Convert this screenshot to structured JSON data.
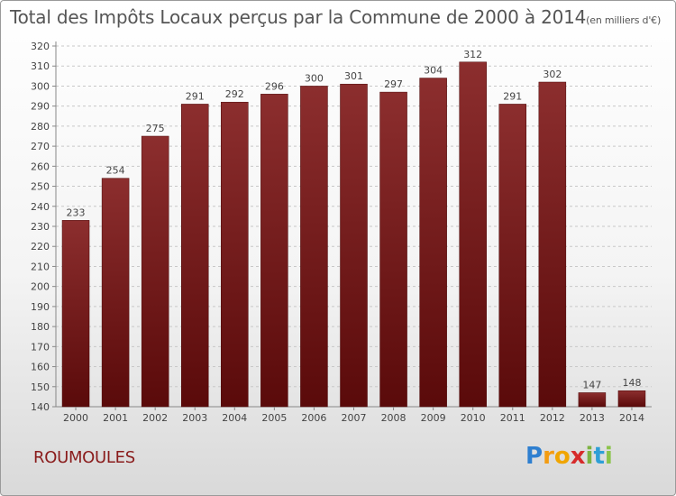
{
  "title": "Total des Impôts Locaux perçus par la Commune de 2000 à 2014",
  "subtitle": "(en milliers d'€)",
  "commune": "ROUMOULES",
  "logo": {
    "letters": [
      "P",
      "r",
      "o",
      "x",
      "i",
      "t",
      "i"
    ],
    "colors": [
      "#2e7fd0",
      "#f39c12",
      "#f0a500",
      "#d62b2b",
      "#7cb342",
      "#2e9fd6",
      "#8bc34a"
    ]
  },
  "chart_data": {
    "type": "bar",
    "title": "Total des Impôts Locaux perçus par la Commune de 2000 à 2014",
    "xlabel": "",
    "ylabel": "",
    "categories": [
      "2000",
      "2001",
      "2002",
      "2003",
      "2004",
      "2005",
      "2006",
      "2007",
      "2008",
      "2009",
      "2010",
      "2011",
      "2012",
      "2013",
      "2014"
    ],
    "values": [
      233,
      254,
      275,
      291,
      292,
      296,
      300,
      301,
      297,
      304,
      312,
      291,
      302,
      147,
      148
    ],
    "ylim": [
      140,
      320
    ],
    "yticks": [
      140,
      150,
      160,
      170,
      180,
      190,
      200,
      210,
      220,
      230,
      240,
      250,
      260,
      270,
      280,
      290,
      300,
      310,
      320
    ],
    "bar_color": "#7a1a1a",
    "grid": true
  }
}
